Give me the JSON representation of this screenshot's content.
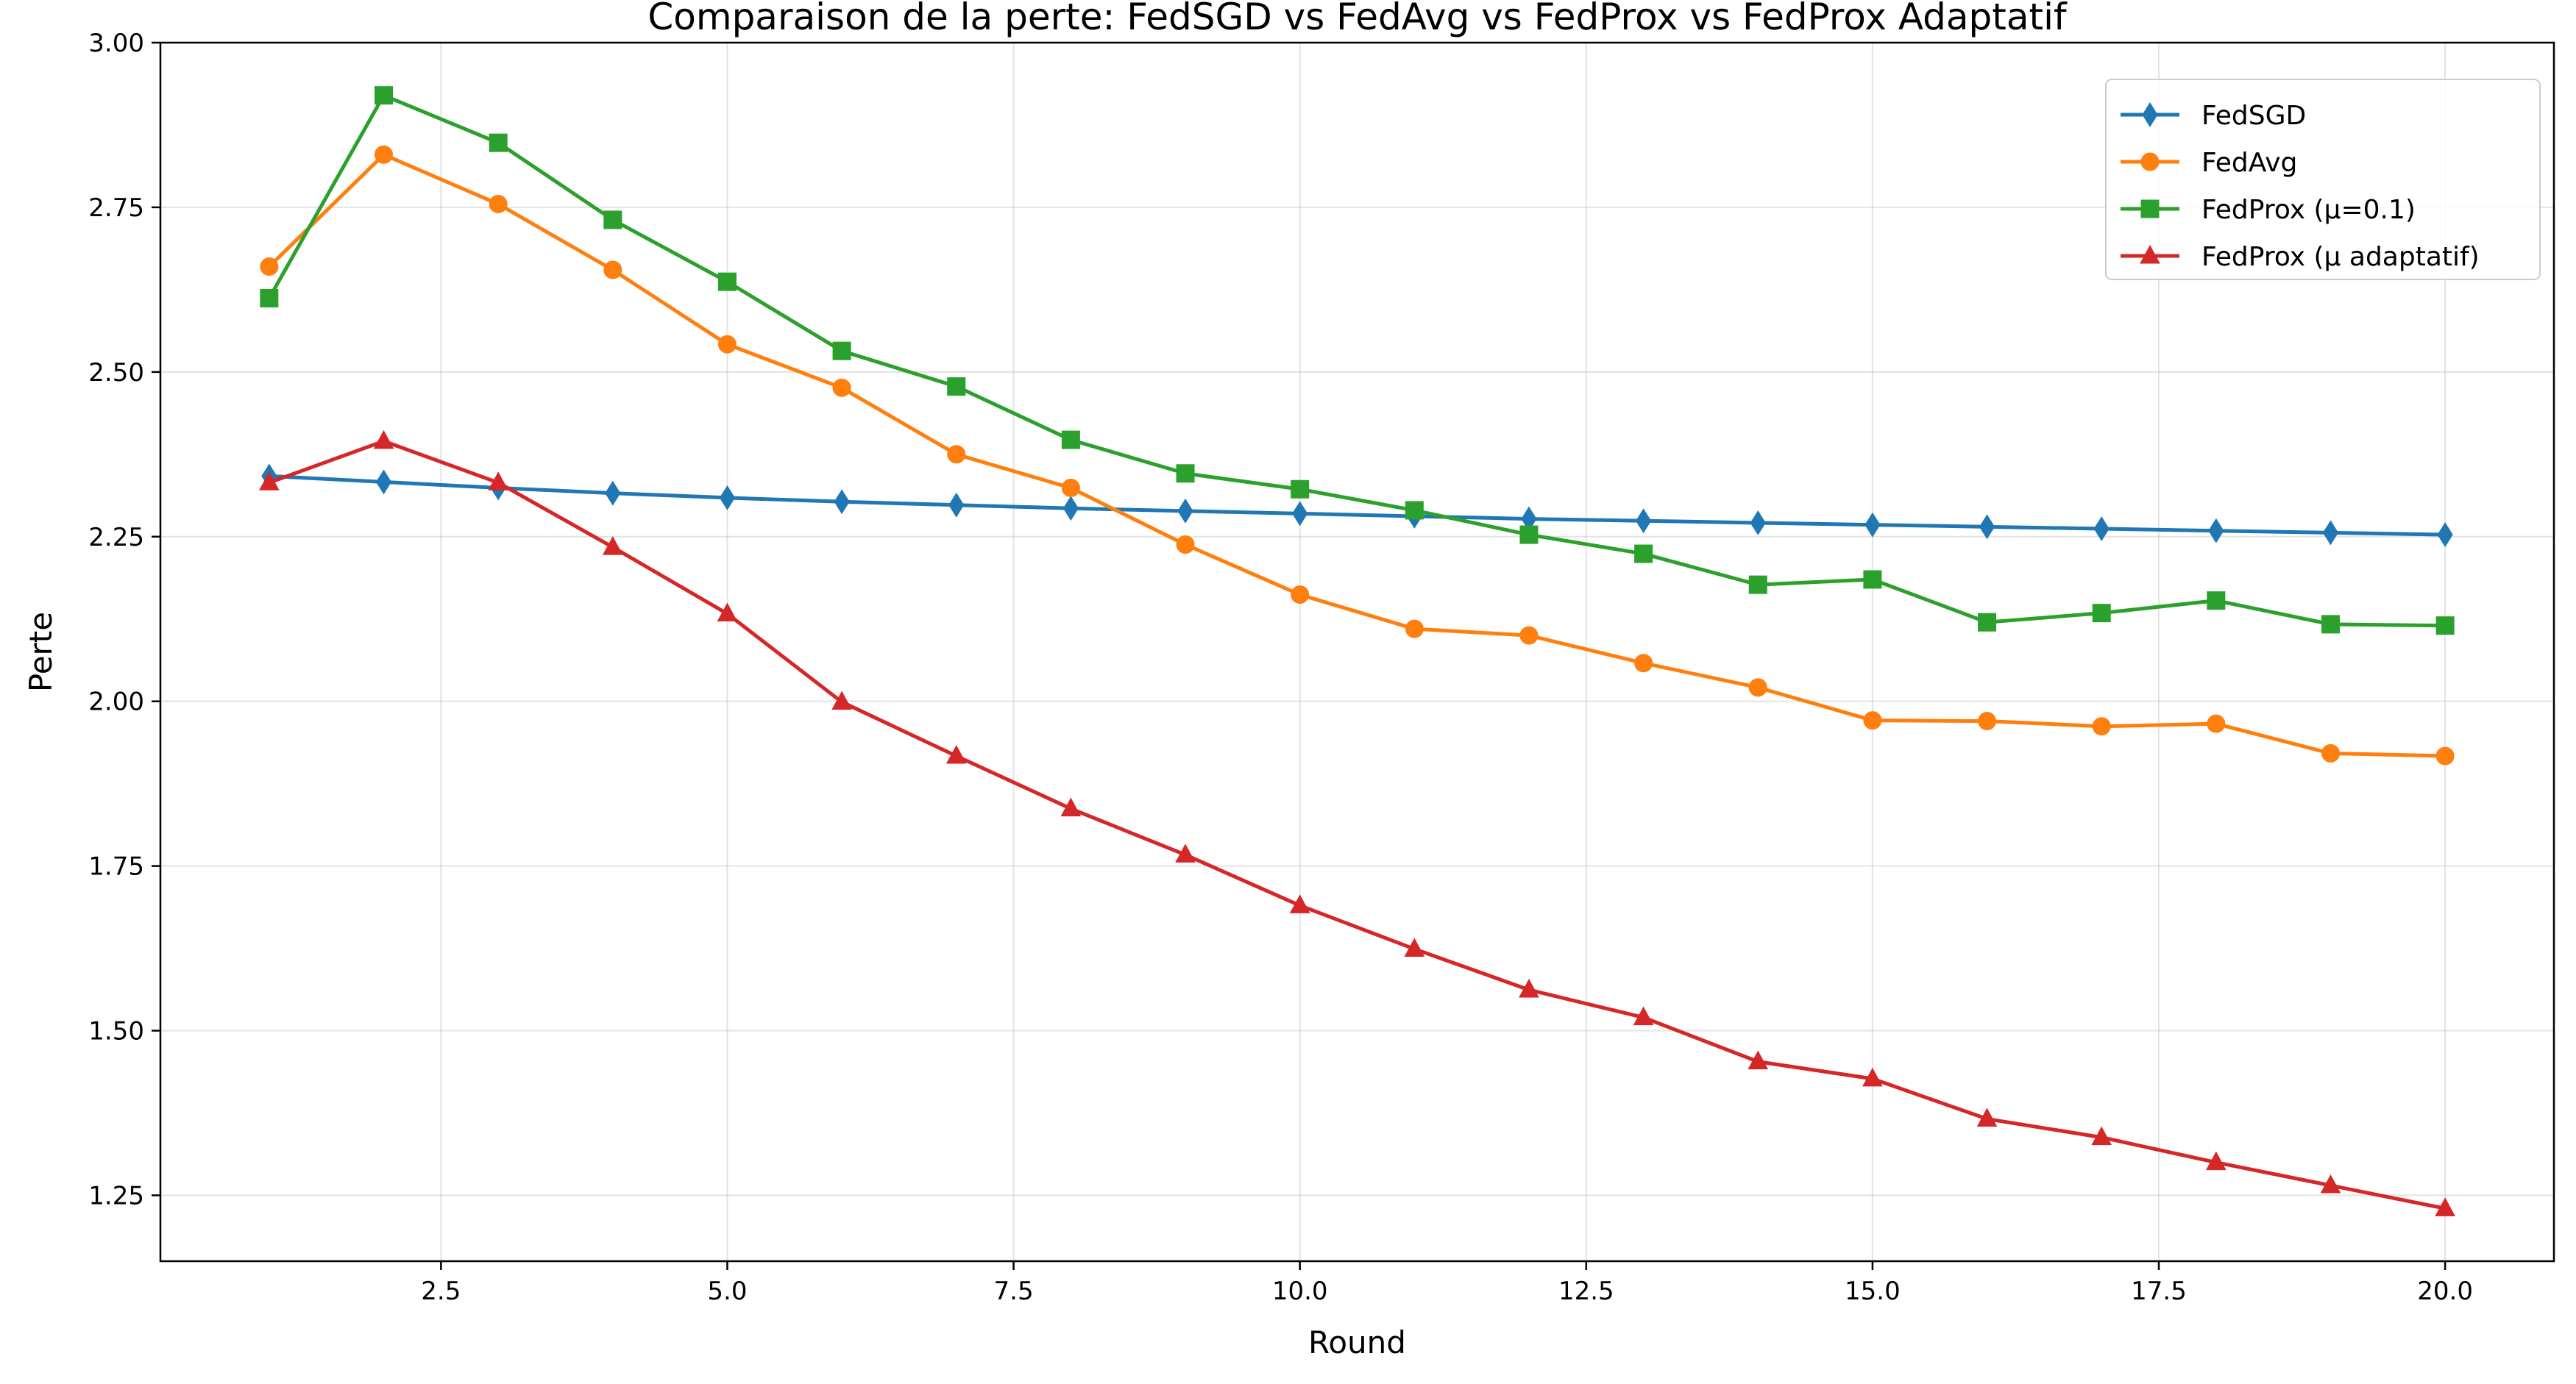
{
  "chart_data": {
    "type": "line",
    "title": "Comparaison de la perte: FedSGD vs FedAvg vs FedProx vs FedProx Adaptatif",
    "xlabel": "Round",
    "ylabel": "Perte",
    "xlim": [
      0.05,
      20.95
    ],
    "ylim": [
      1.15,
      3.0
    ],
    "xticks": [
      2.5,
      5.0,
      7.5,
      10.0,
      12.5,
      15.0,
      17.5,
      20.0
    ],
    "xtick_labels": [
      "2.5",
      "5.0",
      "7.5",
      "10.0",
      "12.5",
      "15.0",
      "17.5",
      "20.0"
    ],
    "yticks": [
      1.25,
      1.5,
      1.75,
      2.0,
      2.25,
      2.5,
      2.75,
      3.0
    ],
    "ytick_labels": [
      "1.25",
      "1.50",
      "1.75",
      "2.00",
      "2.25",
      "2.50",
      "2.75",
      "3.00"
    ],
    "grid": true,
    "legend_position": "top-right",
    "x": [
      1,
      2,
      3,
      4,
      5,
      6,
      7,
      8,
      9,
      10,
      11,
      12,
      13,
      14,
      15,
      16,
      17,
      18,
      19,
      20
    ],
    "series": [
      {
        "name": "FedSGD",
        "color": "#1f77b4",
        "marker": "diamond",
        "values": [
          2.342,
          2.333,
          2.324,
          2.316,
          2.309,
          2.303,
          2.298,
          2.293,
          2.289,
          2.285,
          2.281,
          2.277,
          2.274,
          2.271,
          2.268,
          2.265,
          2.262,
          2.259,
          2.256,
          2.253
        ]
      },
      {
        "name": "FedAvg",
        "color": "#ff7f0e",
        "marker": "circle",
        "values": [
          2.66,
          2.83,
          2.755,
          2.655,
          2.542,
          2.476,
          2.375,
          2.324,
          2.238,
          2.162,
          2.11,
          2.1,
          2.058,
          2.021,
          1.971,
          1.97,
          1.962,
          1.966,
          1.921,
          1.917
        ]
      },
      {
        "name": "FedProx (μ=0.1)",
        "color": "#2ca02c",
        "marker": "square",
        "values": [
          2.612,
          2.92,
          2.848,
          2.731,
          2.637,
          2.532,
          2.478,
          2.397,
          2.346,
          2.322,
          2.29,
          2.253,
          2.224,
          2.177,
          2.185,
          2.12,
          2.134,
          2.153,
          2.117,
          2.115
        ]
      },
      {
        "name": "FedProx (μ adaptatif)",
        "color": "#d62728",
        "marker": "triangle",
        "values": [
          2.332,
          2.395,
          2.332,
          2.234,
          2.133,
          1.999,
          1.917,
          1.837,
          1.767,
          1.69,
          1.624,
          1.562,
          1.52,
          1.453,
          1.427,
          1.366,
          1.338,
          1.3,
          1.265,
          1.23
        ]
      }
    ]
  }
}
